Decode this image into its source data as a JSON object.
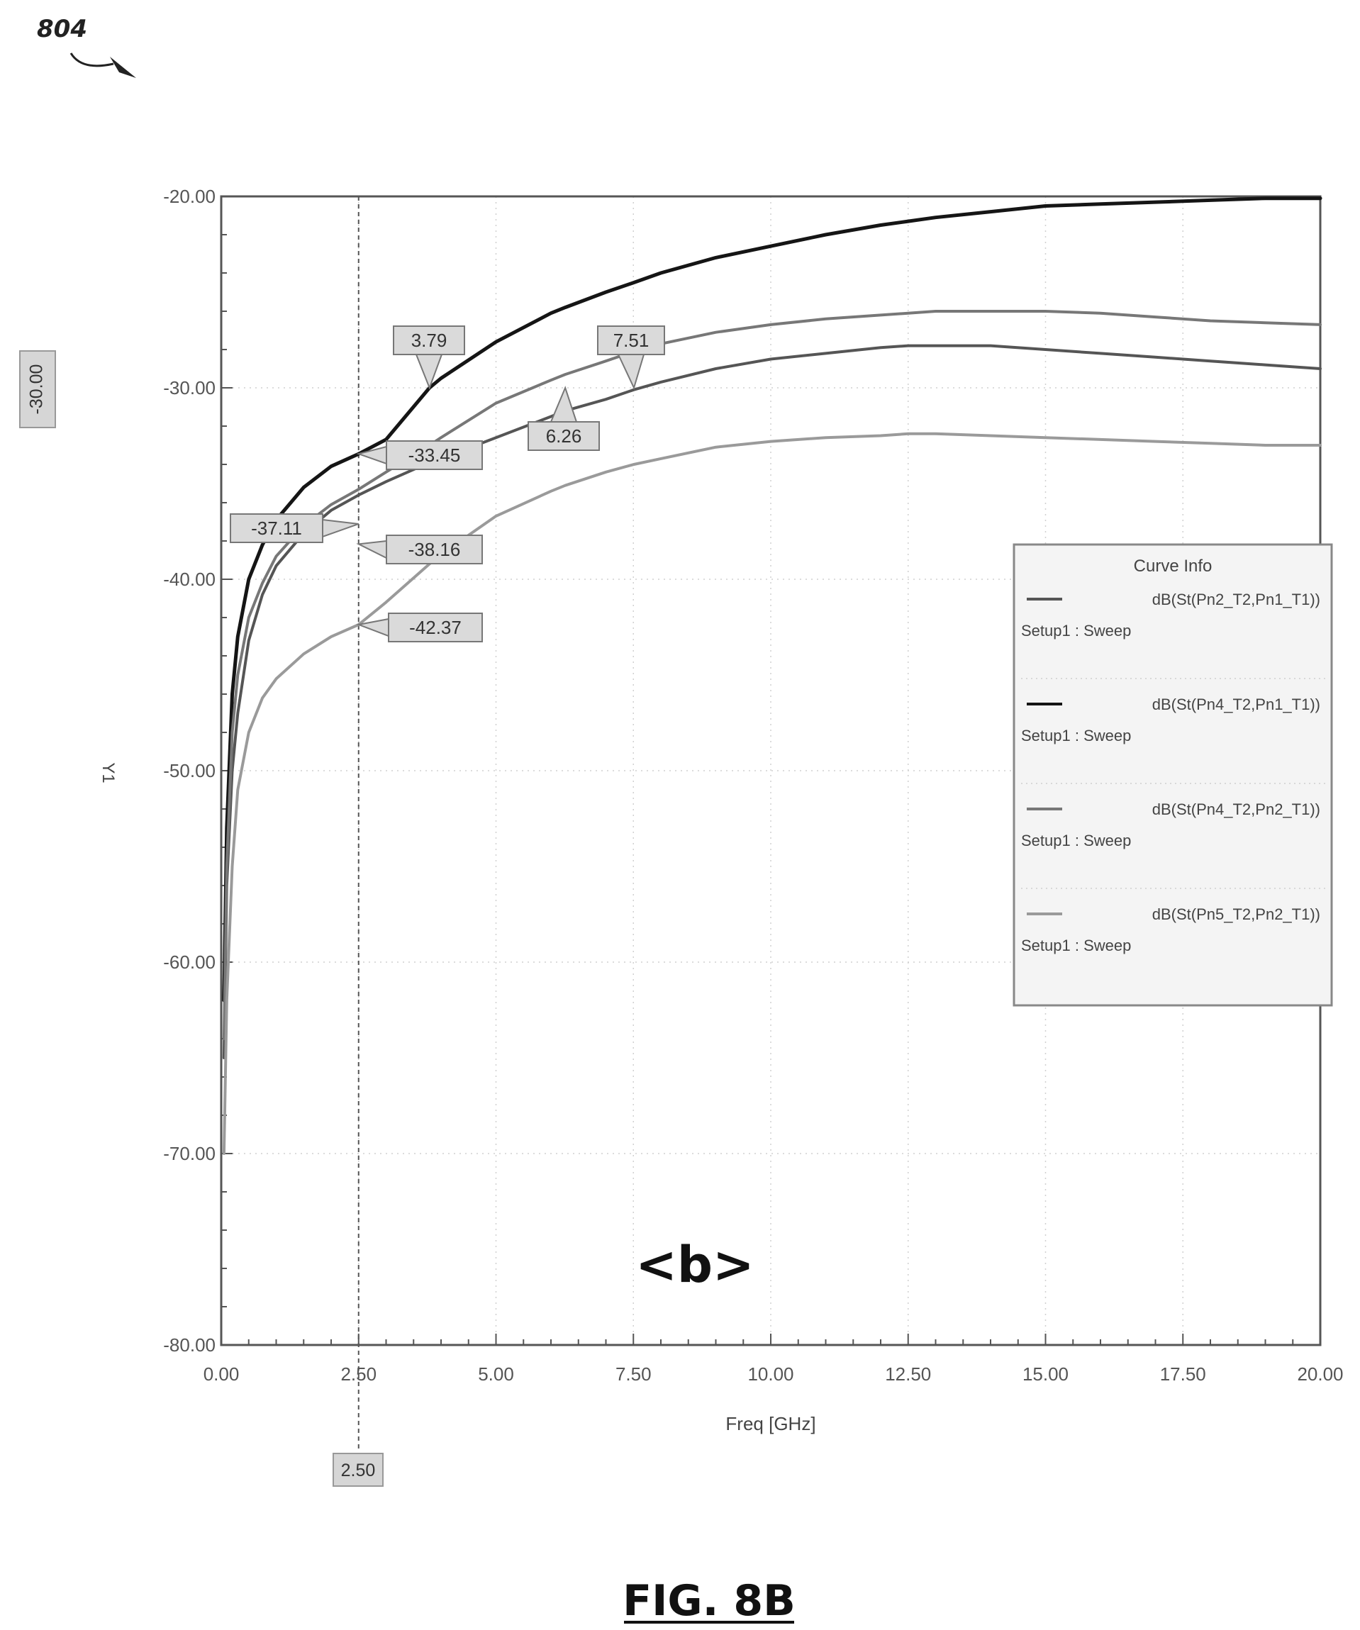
{
  "figure": {
    "reference_number": "804",
    "caption": "FIG. 8B",
    "panel_label": "<b>"
  },
  "chart_data": {
    "type": "line",
    "xlabel": "Freq [GHz]",
    "ylabel": "Y1",
    "xlim": [
      0,
      20
    ],
    "ylim": [
      -80,
      -20
    ],
    "x_ticks": [
      "0.00",
      "2.50",
      "5.00",
      "7.50",
      "10.00",
      "12.50",
      "15.00",
      "17.50",
      "20.00"
    ],
    "y_ticks": [
      "-20.00",
      "-30.00",
      "-40.00",
      "-50.00",
      "-60.00",
      "-70.00",
      "-80.00"
    ],
    "grid": true,
    "legend": {
      "title": "Curve Info",
      "placement": "right",
      "entries": [
        {
          "name": "dB(St(Pn2_T2,Pn1_T1))",
          "sub": "Setup1 : Sweep"
        },
        {
          "name": "dB(St(Pn4_T2,Pn1_T1))",
          "sub": "Setup1 : Sweep"
        },
        {
          "name": "dB(St(Pn4_T2,Pn2_T1))",
          "sub": "Setup1 : Sweep"
        },
        {
          "name": "dB(St(Pn5_T2,Pn2_T1))",
          "sub": "Setup1 : Sweep"
        }
      ]
    },
    "x": [
      0.05,
      0.1,
      0.2,
      0.3,
      0.5,
      0.75,
      1,
      1.5,
      2,
      2.5,
      3,
      3.79,
      4,
      5,
      6,
      6.26,
      7,
      7.51,
      8,
      9,
      10,
      11,
      12,
      12.5,
      13,
      14,
      15,
      16,
      17,
      18,
      19,
      20
    ],
    "series": [
      {
        "name": "dB(St(Pn2_T2,Pn1_T1))",
        "color": "#555555",
        "values": [
          -65,
          -56,
          -50,
          -47,
          -43.2,
          -40.8,
          -39.3,
          -37.6,
          -36.4,
          -35.6,
          -34.9,
          -33.9,
          -33.7,
          -32.6,
          -31.5,
          -31.2,
          -30.6,
          -30.1,
          -29.7,
          -29.0,
          -28.5,
          -28.2,
          -27.9,
          -27.8,
          -27.8,
          -27.8,
          -28.0,
          -28.2,
          -28.4,
          -28.6,
          -28.8,
          -29.0
        ]
      },
      {
        "name": "dB(St(Pn4_T2,Pn1_T1))",
        "color": "#151515",
        "values": [
          -62,
          -53,
          -46,
          -43,
          -40,
          -38.2,
          -36.9,
          -35.2,
          -34.1,
          -33.45,
          -32.7,
          -30.0,
          -29.5,
          -27.6,
          -26.1,
          -25.8,
          -25.0,
          -24.5,
          -24.0,
          -23.2,
          -22.6,
          -22.0,
          -21.5,
          -21.3,
          -21.1,
          -20.8,
          -20.5,
          -20.4,
          -20.3,
          -20.2,
          -20.1,
          -20.1
        ]
      },
      {
        "name": "dB(St(Pn4_T2,Pn2_T1))",
        "color": "#777777",
        "values": [
          -64,
          -55,
          -48,
          -45,
          -42,
          -40.2,
          -38.8,
          -37.2,
          -36.1,
          -35.3,
          -34.4,
          -33.0,
          -32.6,
          -30.8,
          -29.6,
          -29.3,
          -28.6,
          -28.1,
          -27.7,
          -27.1,
          -26.7,
          -26.4,
          -26.2,
          -26.1,
          -26.0,
          -26.0,
          -26.0,
          -26.1,
          -26.3,
          -26.5,
          -26.6,
          -26.7
        ]
      },
      {
        "name": "dB(St(Pn5_T2,Pn2_T1))",
        "color": "#9a9a9a",
        "values": [
          -70,
          -62,
          -55,
          -51,
          -48,
          -46.2,
          -45.2,
          -43.9,
          -43.0,
          -42.37,
          -41.2,
          -39.2,
          -38.7,
          -36.7,
          -35.4,
          -35.1,
          -34.4,
          -34.0,
          -33.7,
          -33.1,
          -32.8,
          -32.6,
          -32.5,
          -32.4,
          -32.4,
          -32.5,
          -32.6,
          -32.7,
          -32.8,
          -32.9,
          -33.0,
          -33.0
        ]
      }
    ],
    "marker_line": {
      "x": 2.5,
      "label": "2.50"
    },
    "y_marker_label": "-30.00",
    "annotations": [
      {
        "label": "3.79",
        "x": 3.79,
        "y": -30.0
      },
      {
        "label": "7.51",
        "x": 7.51,
        "y": -30.0
      },
      {
        "label": "6.26",
        "x": 6.26,
        "y": -30.0
      },
      {
        "label": "-33.45",
        "x": 2.5,
        "y": -33.45
      },
      {
        "label": "-37.11",
        "x": 2.5,
        "y": -37.11
      },
      {
        "label": "-38.16",
        "x": 2.5,
        "y": -38.16
      },
      {
        "label": "-42.37",
        "x": 2.5,
        "y": -42.37
      }
    ]
  }
}
